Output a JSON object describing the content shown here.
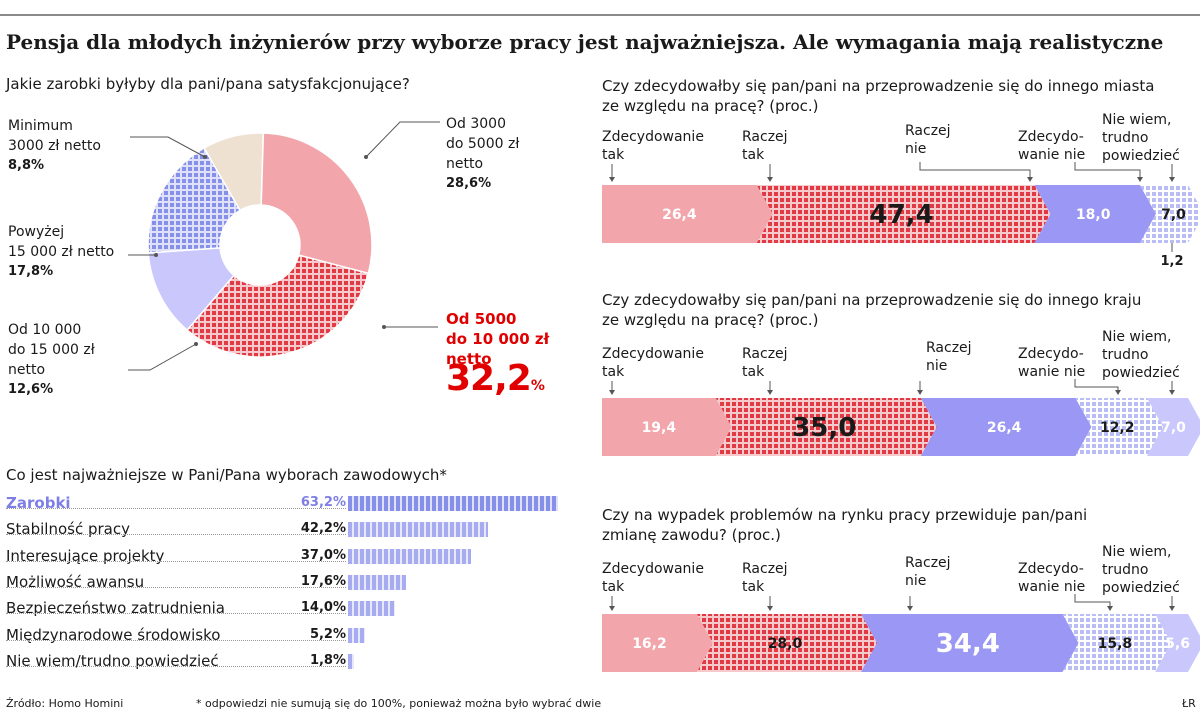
{
  "title": "Pensja dla młodych inżynierów przy wyborze pracy jest najważniejsza. Ale wymagania mają realistyczne",
  "colors": {
    "salmon": "#f2a5aa",
    "red": "#e03a45",
    "purple": "#9a97f5",
    "light_purple": "#c9c7fb",
    "beige": "#efe1d2",
    "blue_hatch": "#8790e8"
  },
  "donut": {
    "question": "Jakie zarobki byłyby dla pani/pana satysfakcjonujące?",
    "labels": {
      "min_l1": "Minimum",
      "min_l2": "3000 zł netto",
      "min_v": "8,8%",
      "a_l1": "Od 3000",
      "a_l2": "do 5000 zł",
      "a_l3": "netto",
      "a_v": "28,6%",
      "b_l1": "Od 5000",
      "b_l2": "do 10 000 zł",
      "b_l3": "netto",
      "b_v": "32,2",
      "b_unit": "%",
      "c_l1": "Od 10 000",
      "c_l2": "do 15 000 zł",
      "c_l3": "netto",
      "c_v": "12,6%",
      "d_l1": "Powyżej",
      "d_l2": "15 000 zł netto",
      "d_v": "17,8%"
    }
  },
  "importance": {
    "question": "Co jest najważniejsze w Pani/Pana wyborach zawodowych*",
    "items": [
      {
        "label": "Zarobki",
        "value": "63,2%"
      },
      {
        "label": "Stabilność pracy",
        "value": "42,2%"
      },
      {
        "label": "Interesujące projekty",
        "value": "37,0%"
      },
      {
        "label": "Możliwość awansu",
        "value": "17,6%"
      },
      {
        "label": "Bezpieczeństwo zatrudnienia",
        "value": "14,0%"
      },
      {
        "label": "Międzynarodowe środowisko",
        "value": "5,2%"
      },
      {
        "label": "Nie wiem/trudno powiedzieć",
        "value": "1,8%"
      }
    ]
  },
  "bars": {
    "b1": {
      "q1": "Czy zdecydowałby się pan/pani na przeprowadzenie się do innego miasta",
      "q2": "ze względu na pracę? (proc.)",
      "extra": "1,2"
    },
    "b2": {
      "q1": "Czy zdecydowałby się pan/pani na przeprowadzenie się do innego kraju",
      "q2": "ze względu na pracę? (proc.)"
    },
    "b3": {
      "q1": "Czy na wypadek problemów na rynku pracy przewiduje pan/pani",
      "q2": "zmianę zawodu? (proc.)"
    },
    "cat_labels": {
      "zt1": "Zdecydowanie",
      "zt2": "tak",
      "rt1": "Raczej",
      "rt2": "tak",
      "rn1": "Raczej",
      "rn2": "nie",
      "zn1": "Zdecydo-",
      "zn2": "wanie nie",
      "nw1": "Nie wiem,",
      "nw2": "trudno",
      "nw3": "powiedzieć"
    }
  },
  "footer": {
    "source": "Źródło: Homo Homini",
    "note": "* odpowiedzi nie sumują się do 100%, ponieważ można było wybrać dwie",
    "credit": "ŁR"
  },
  "chart_data": [
    {
      "type": "pie",
      "title": "Jakie zarobki byłyby dla pani/pana satysfakcjonujące?",
      "categories": [
        "Minimum 3000 zł netto",
        "Od 3000 do 5000 zł netto",
        "Od 5000 do 10 000 zł netto",
        "Od 10 000 do 15 000 zł netto",
        "Powyżej 15 000 zł netto"
      ],
      "values": [
        8.8,
        28.6,
        32.2,
        12.6,
        17.8
      ]
    },
    {
      "type": "bar",
      "title": "Co jest najważniejsze w Pani/Pana wyborach zawodowych*",
      "categories": [
        "Zarobki",
        "Stabilność pracy",
        "Interesujące projekty",
        "Możliwość awansu",
        "Bezpieczeństwo zatrudnienia",
        "Międzynarodowe środowisko",
        "Nie wiem/trudno powiedzieć"
      ],
      "values": [
        63.2,
        42.2,
        37.0,
        17.6,
        14.0,
        5.2,
        1.8
      ],
      "xlim": [
        0,
        63.2
      ]
    },
    {
      "type": "bar",
      "title": "Czy zdecydowałby się pan/pani na przeprowadzenie się do innego miasta ze względu na pracę? (proc.)",
      "categories": [
        "Zdecydowanie tak",
        "Raczej tak",
        "Raczej nie",
        "Zdecydowanie nie",
        "Nie wiem, trudno powiedzieć"
      ],
      "values": [
        26.4,
        47.4,
        18.0,
        1.2,
        7.0
      ],
      "labels": [
        "26,4",
        "47,4",
        "18,0",
        "1,2",
        "7,0"
      ]
    },
    {
      "type": "bar",
      "title": "Czy zdecydowałby się pan/pani na przeprowadzenie się do innego kraju ze względu na pracę? (proc.)",
      "categories": [
        "Zdecydowanie tak",
        "Raczej tak",
        "Raczej nie",
        "Zdecydowanie nie",
        "Nie wiem, trudno powiedzieć"
      ],
      "values": [
        19.4,
        35.0,
        26.4,
        12.2,
        7.0
      ],
      "labels": [
        "19,4",
        "35,0",
        "26,4",
        "12,2",
        "7,0"
      ]
    },
    {
      "type": "bar",
      "title": "Czy na wypadek problemów na rynku pracy przewiduje pan/pani zmianę zawodu? (proc.)",
      "categories": [
        "Zdecydowanie tak",
        "Raczej tak",
        "Raczej nie",
        "Zdecydowanie nie",
        "Nie wiem, trudno powiedzieć"
      ],
      "values": [
        16.2,
        28.0,
        34.4,
        15.8,
        5.6
      ],
      "labels": [
        "16,2",
        "28,0",
        "34,4",
        "15,8",
        "5,6"
      ]
    }
  ]
}
